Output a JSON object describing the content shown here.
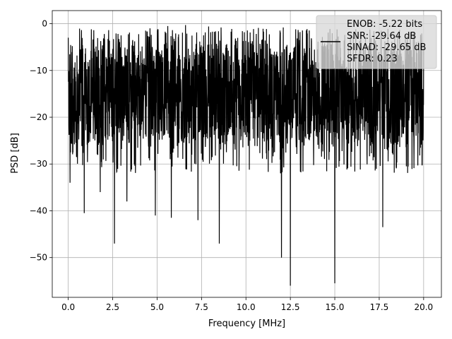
{
  "chart_data": {
    "type": "line",
    "title": "",
    "xlabel": "Frequency [MHz]",
    "ylabel": "PSD [dB]",
    "xlim": [
      -0.9,
      21.0
    ],
    "ylim": [
      -58.5,
      2.8
    ],
    "xticks": [
      0.0,
      2.5,
      5.0,
      7.5,
      10.0,
      12.5,
      15.0,
      17.5,
      20.0
    ],
    "xtick_labels": [
      "0.0",
      "2.5",
      "5.0",
      "7.5",
      "10.0",
      "12.5",
      "15.0",
      "17.5",
      "20.0"
    ],
    "yticks": [
      0,
      -10,
      -20,
      -30,
      -40,
      -50
    ],
    "ytick_labels": [
      "0",
      "−10",
      "−20",
      "−30",
      "−40",
      "−50"
    ],
    "grid": true,
    "legend_position": "top-right",
    "series": [
      {
        "name": "ENOB: -5.22 bits\nSNR: -29.64 dB\nSINAD: -29.65 dB\nSFDR: 0.23",
        "color": "#000000",
        "description": "dense noise-like spectrum",
        "x_range": [
          0.0,
          20.0
        ],
        "typical_band_db": [
          -26,
          -6
        ],
        "peaks": [
          {
            "x": 0.0,
            "y": -3
          },
          {
            "x": 4.6,
            "y": -1
          },
          {
            "x": 5.6,
            "y": -0.5
          },
          {
            "x": 6.6,
            "y": -0.3
          },
          {
            "x": 7.9,
            "y": -0.6
          },
          {
            "x": 8.6,
            "y": -0.8
          },
          {
            "x": 9.8,
            "y": -1.6
          },
          {
            "x": 10.7,
            "y": -0.9
          },
          {
            "x": 12.1,
            "y": -0.8
          },
          {
            "x": 13.4,
            "y": -1.4
          }
        ],
        "dips": [
          {
            "x": 0.1,
            "y": -34
          },
          {
            "x": 0.9,
            "y": -40.5
          },
          {
            "x": 1.8,
            "y": -36
          },
          {
            "x": 2.6,
            "y": -47
          },
          {
            "x": 3.3,
            "y": -38
          },
          {
            "x": 4.9,
            "y": -41
          },
          {
            "x": 5.8,
            "y": -41.5
          },
          {
            "x": 7.3,
            "y": -42
          },
          {
            "x": 8.5,
            "y": -47
          },
          {
            "x": 12.0,
            "y": -50
          },
          {
            "x": 12.5,
            "y": -56
          },
          {
            "x": 15.0,
            "y": -55.5
          },
          {
            "x": 17.7,
            "y": -43.5
          }
        ]
      }
    ],
    "legend_lines": [
      "ENOB: -5.22 bits",
      "SNR: -29.64 dB",
      "SINAD: -29.65 dB",
      "SFDR: 0.23"
    ]
  }
}
